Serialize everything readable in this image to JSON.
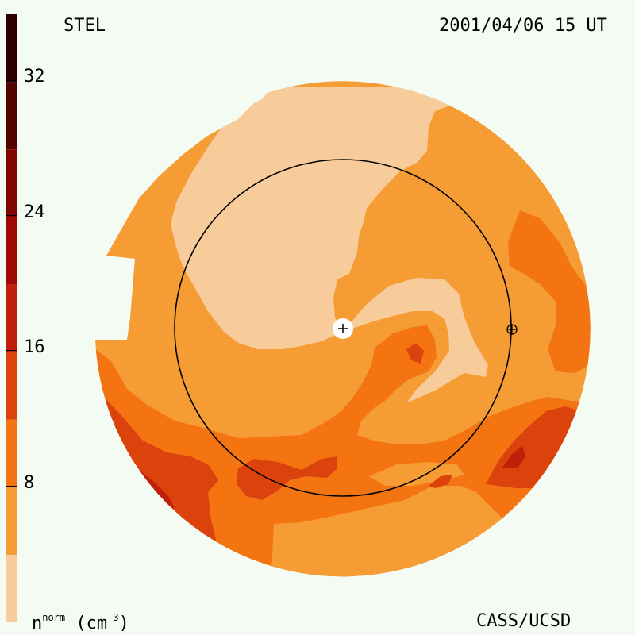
{
  "header": {
    "instrument": "STEL",
    "timestamp": "2001/04/06 15 UT"
  },
  "footer": {
    "quantity_base": "n",
    "quantity_sup": "norm",
    "unit_open": " (cm",
    "unit_sup": "-3",
    "unit_close": ")",
    "credit": "CASS/UCSD"
  },
  "colorbar": {
    "ticks": [
      "32",
      "24",
      "16",
      "8"
    ],
    "tick_values": [
      32,
      24,
      16,
      8
    ],
    "range": [
      0,
      36
    ],
    "bands": [
      {
        "from": 0,
        "to": 4,
        "color": "#f7cb9a"
      },
      {
        "from": 4,
        "to": 8,
        "color": "#f69c34"
      },
      {
        "from": 8,
        "to": 12,
        "color": "#f57412"
      },
      {
        "from": 12,
        "to": 16,
        "color": "#db420c"
      },
      {
        "from": 16,
        "to": 20,
        "color": "#c01f0a"
      },
      {
        "from": 20,
        "to": 24,
        "color": "#a00a05"
      },
      {
        "from": 24,
        "to": 28,
        "color": "#800603"
      },
      {
        "from": 28,
        "to": 32,
        "color": "#540301"
      },
      {
        "from": 32,
        "to": 36,
        "color": "#2a0100"
      }
    ]
  },
  "map_colors": {
    "light": "#f7cb9a",
    "medium": "#f69c34",
    "dark": "#f57412",
    "darker": "#db420c",
    "deepest": "#c01f0a",
    "outline": "#000000",
    "sun": "#ffffff"
  }
}
